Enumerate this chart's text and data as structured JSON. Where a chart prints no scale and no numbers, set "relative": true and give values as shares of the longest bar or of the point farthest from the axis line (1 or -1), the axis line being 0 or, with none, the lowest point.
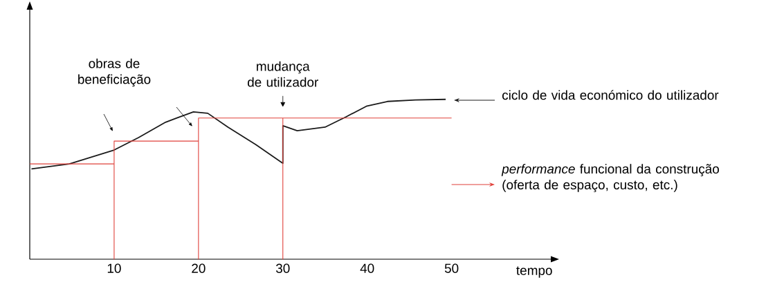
{
  "chart_data": {
    "type": "line",
    "relative": true,
    "xlabel": "tempo",
    "xlim": [
      0,
      62.5
    ],
    "xticks": [
      10,
      20,
      30,
      40,
      50
    ],
    "series": [
      {
        "name": "ciclo de vida económico do utilizador",
        "color": "#1a1a1a",
        "x": [
          0.2,
          4.7,
          10,
          12.9,
          16.1,
          19.4,
          21.1,
          23.5,
          26.8,
          30,
          30,
          31.7,
          35,
          37.5,
          39.9,
          42.4,
          45.7,
          49.3
        ],
        "values": [
          0.565,
          0.596,
          0.683,
          0.761,
          0.857,
          0.922,
          0.913,
          0.826,
          0.717,
          0.6,
          0.835,
          0.804,
          0.826,
          0.891,
          0.957,
          0.987,
          0.996,
          1
        ]
      },
      {
        "name": "*performance* funcional da construção (oferta de espaço, custo, etc.)",
        "color": "#e0403a",
        "x": [
          0,
          10,
          10,
          10,
          20,
          20,
          20,
          30,
          30,
          30,
          50
        ],
        "values": [
          0.596,
          0.596,
          0,
          0.739,
          0.739,
          0,
          0.883,
          0.883,
          0,
          0.883,
          0.883
        ]
      }
    ],
    "legend": "right",
    "annotations": [
      "obras de beneficiação",
      {
        "text": "mudança de utilizador",
        "x": 30,
        "y": 0.883
      }
    ]
  }
}
